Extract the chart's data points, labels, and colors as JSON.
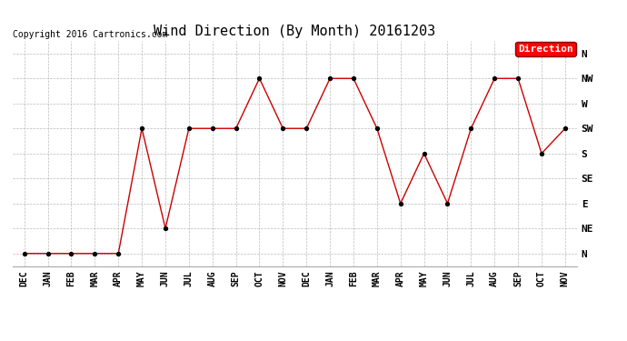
{
  "title": "Wind Direction (By Month) 20161203",
  "copyright": "Copyright 2016 Cartronics.com",
  "legend_label": "Direction",
  "legend_color": "#ff0000",
  "legend_text_color": "#ffffff",
  "background_color": "#ffffff",
  "grid_color": "#bbbbbb",
  "line_color": "#cc0000",
  "marker_color": "#000000",
  "x_labels": [
    "DEC",
    "JAN",
    "FEB",
    "MAR",
    "APR",
    "MAY",
    "JUN",
    "JUL",
    "AUG",
    "SEP",
    "OCT",
    "NOV",
    "DEC",
    "JAN",
    "FEB",
    "MAR",
    "APR",
    "MAY",
    "JUN",
    "JUL",
    "AUG",
    "SEP",
    "OCT",
    "NOV"
  ],
  "y_labels": [
    "N",
    "NE",
    "E",
    "SE",
    "S",
    "SW",
    "W",
    "NW",
    "N"
  ],
  "y_values": [
    0,
    1,
    2,
    3,
    4,
    5,
    6,
    7,
    8
  ],
  "data_points": [
    0,
    0,
    0,
    0,
    0,
    5,
    1,
    5,
    5,
    5,
    7,
    5,
    5,
    7,
    7,
    5,
    2,
    4,
    2,
    5,
    7,
    7,
    4,
    5
  ],
  "title_fontsize": 11,
  "tick_fontsize": 7,
  "copyright_fontsize": 7
}
